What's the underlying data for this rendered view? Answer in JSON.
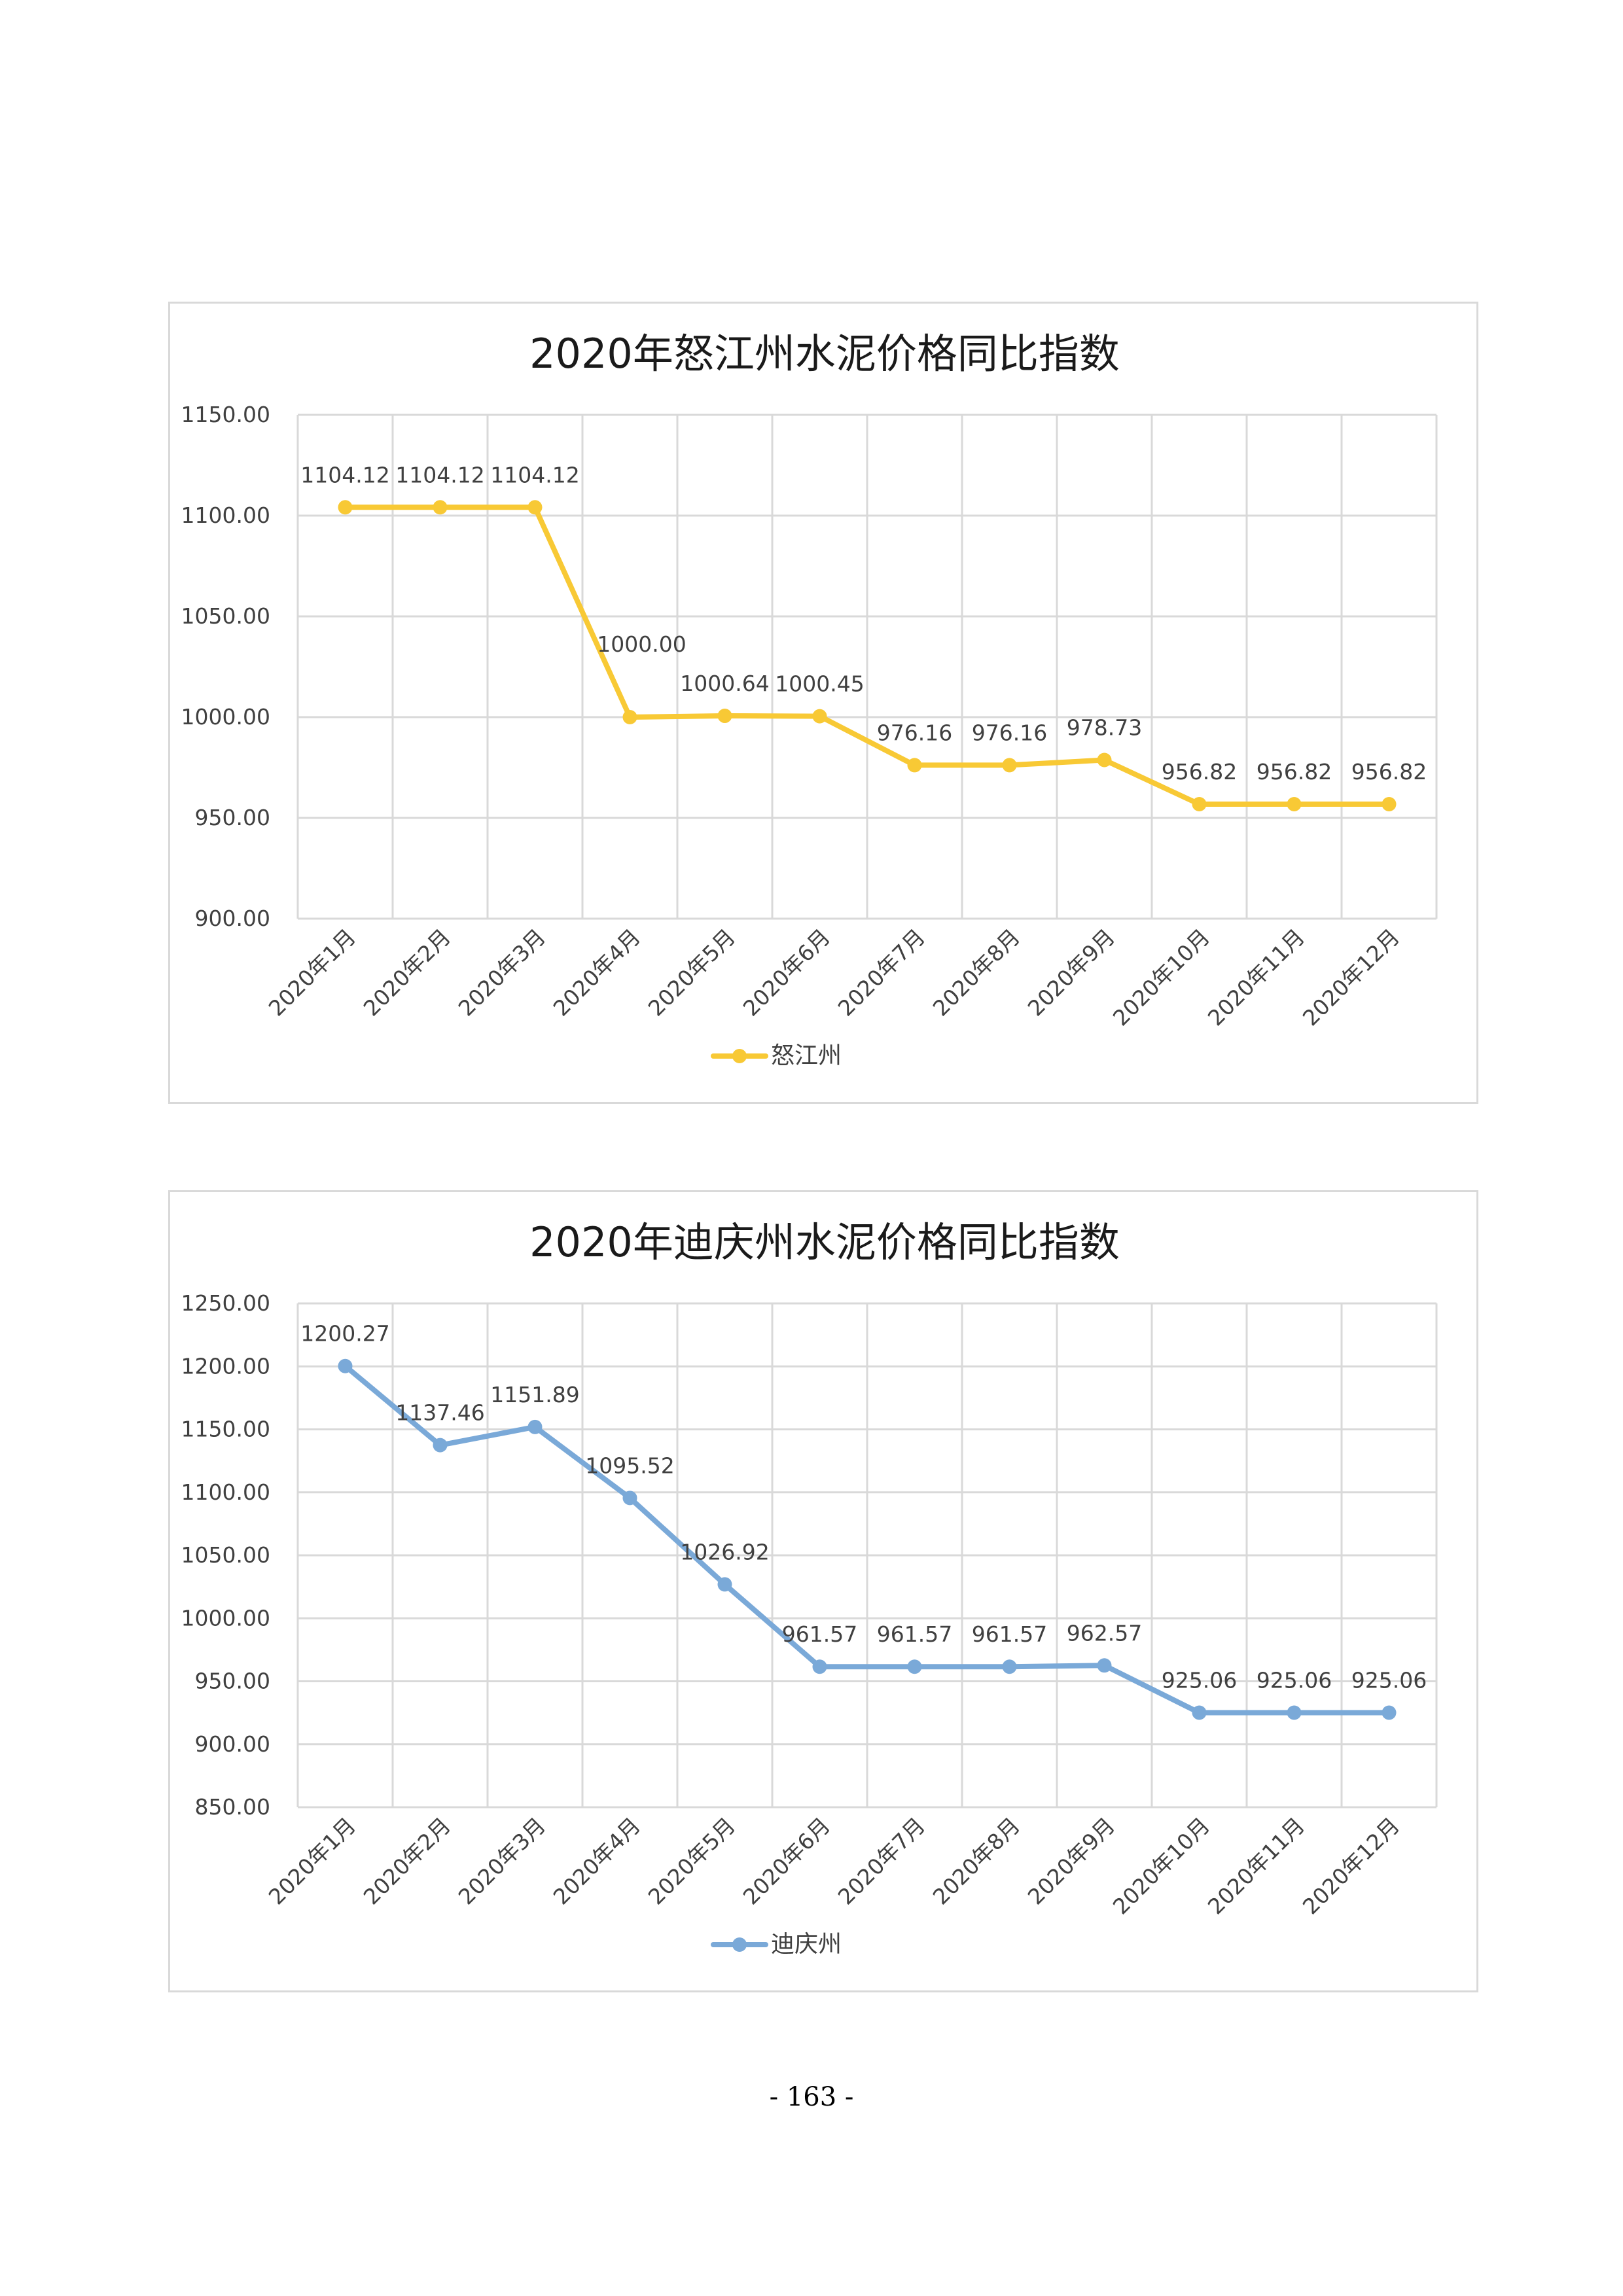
{
  "page": {
    "number": "- 163 -"
  },
  "chart_data": [
    {
      "type": "line",
      "title": "2020年怒江州水泥价格同比指数",
      "xlabel": "",
      "ylabel": "",
      "categories": [
        "2020年1月",
        "2020年2月",
        "2020年3月",
        "2020年4月",
        "2020年5月",
        "2020年6月",
        "2020年7月",
        "2020年8月",
        "2020年9月",
        "2020年10月",
        "2020年11月",
        "2020年12月"
      ],
      "series": [
        {
          "name": "怒江州",
          "color": "#f8c935",
          "values": [
            1104.12,
            1104.12,
            1104.12,
            1000.0,
            1000.64,
            1000.45,
            976.16,
            976.16,
            978.73,
            956.82,
            956.82,
            956.82
          ],
          "labels": [
            "1104.12",
            "1104.12",
            "1104.12",
            "1000.00",
            "1000.64",
            "1000.45",
            "976.16",
            "976.16",
            "978.73",
            "956.82",
            "956.82",
            "956.82"
          ]
        }
      ],
      "ylim": [
        900,
        1150
      ],
      "yticks": [
        "900.00",
        "950.00",
        "1000.00",
        "1050.00",
        "1100.00",
        "1150.00"
      ],
      "grid": true,
      "legend": "bottom"
    },
    {
      "type": "line",
      "title": "2020年迪庆州水泥价格同比指数",
      "xlabel": "",
      "ylabel": "",
      "categories": [
        "2020年1月",
        "2020年2月",
        "2020年3月",
        "2020年4月",
        "2020年5月",
        "2020年6月",
        "2020年7月",
        "2020年8月",
        "2020年9月",
        "2020年10月",
        "2020年11月",
        "2020年12月"
      ],
      "series": [
        {
          "name": "迪庆州",
          "color": "#7aa9d8",
          "values": [
            1200.27,
            1137.46,
            1151.89,
            1095.52,
            1026.92,
            961.57,
            961.57,
            961.57,
            962.57,
            925.06,
            925.06,
            925.06
          ],
          "labels": [
            "1200.27",
            "1137.46",
            "1151.89",
            "1095.52",
            "1026.92",
            "961.57",
            "961.57",
            "961.57",
            "962.57",
            "925.06",
            "925.06",
            "925.06"
          ]
        }
      ],
      "ylim": [
        850,
        1250
      ],
      "yticks": [
        "850.00",
        "900.00",
        "950.00",
        "1000.00",
        "1050.00",
        "1100.00",
        "1150.00",
        "1200.00",
        "1250.00"
      ],
      "grid": true,
      "legend": "bottom"
    }
  ]
}
